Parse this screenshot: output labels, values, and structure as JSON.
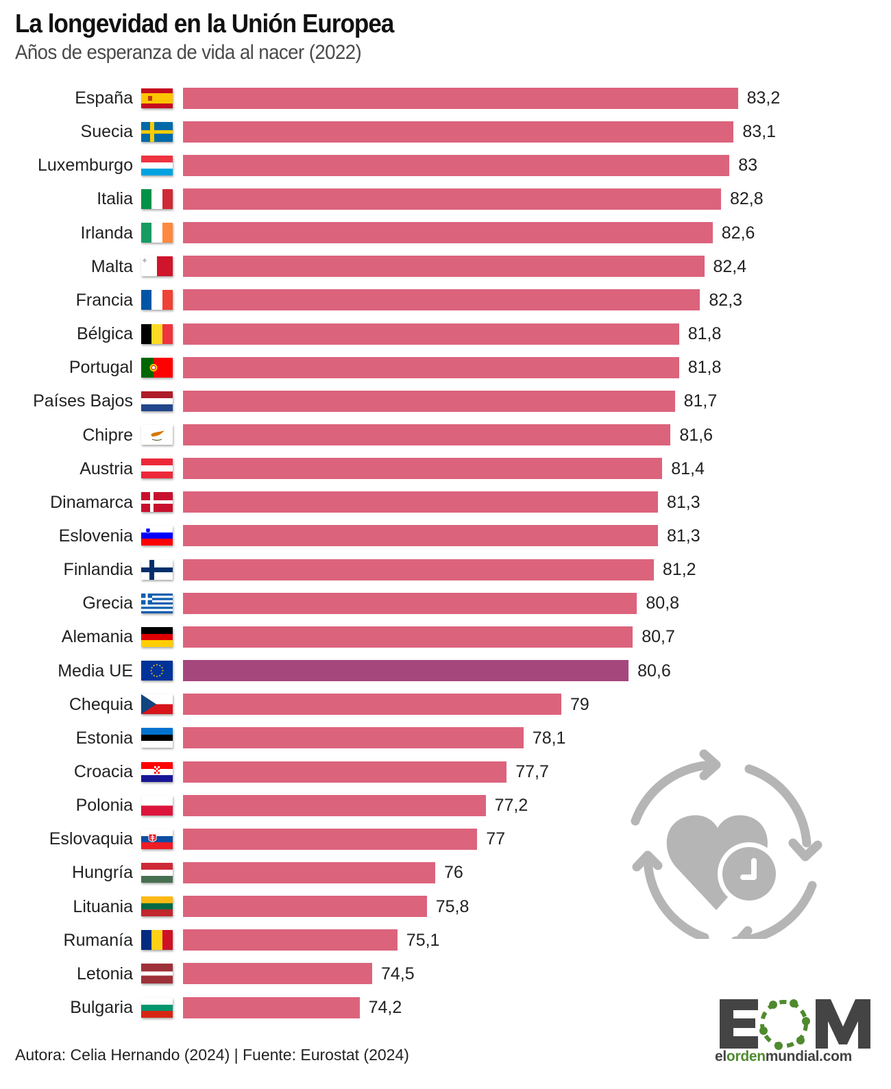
{
  "header": {
    "title": "La longevidad en la Unión Europea",
    "subtitle": "Años de esperanza de vida al nacer (2022)"
  },
  "footer": {
    "credit": "Autora: Celia Hernando (2024) | Fuente: Eurostat (2024)"
  },
  "branding": {
    "logo_letters": "EOM",
    "site_prefix": "el",
    "site_highlight": "orden",
    "site_suffix": "mundial.com"
  },
  "colors": {
    "bar": "#dc637c",
    "bar_highlight": "#a5477d",
    "illustration": "#b5b5b5",
    "logo_dark": "#444444",
    "logo_green": "#4f8a2e"
  },
  "illustration": {
    "icon": "heart-clock-cycle-icon"
  },
  "chart_data": {
    "type": "bar",
    "orientation": "horizontal",
    "title": "La longevidad en la Unión Europea",
    "subtitle": "Años de esperanza de vida al nacer (2022)",
    "xlabel": "",
    "ylabel": "",
    "xlim": [
      70,
      84
    ],
    "grid": false,
    "legend": "none",
    "highlight": "Media UE",
    "categories": [
      "España",
      "Suecia",
      "Luxemburgo",
      "Italia",
      "Irlanda",
      "Malta",
      "Francia",
      "Bélgica",
      "Portugal",
      "Países Bajos",
      "Chipre",
      "Austria",
      "Dinamarca",
      "Eslovenia",
      "Finlandia",
      "Grecia",
      "Alemania",
      "Media UE",
      "Chequia",
      "Estonia",
      "Croacia",
      "Polonia",
      "Eslovaquia",
      "Hungría",
      "Lituania",
      "Rumanía",
      "Letonia",
      "Bulgaria"
    ],
    "flags": [
      "es",
      "se",
      "lu",
      "it",
      "ie",
      "mt",
      "fr",
      "be",
      "pt",
      "nl",
      "cy",
      "at",
      "dk",
      "si",
      "fi",
      "gr",
      "de",
      "eu",
      "cz",
      "ee",
      "hr",
      "pl",
      "sk",
      "hu",
      "lt",
      "ro",
      "lv",
      "bg"
    ],
    "values": [
      83.2,
      83.1,
      83.0,
      82.8,
      82.6,
      82.4,
      82.3,
      81.8,
      81.8,
      81.7,
      81.6,
      81.4,
      81.3,
      81.3,
      81.2,
      80.8,
      80.7,
      80.6,
      79.0,
      78.1,
      77.7,
      77.2,
      77.0,
      76.0,
      75.8,
      75.1,
      74.5,
      74.2
    ],
    "value_labels": [
      "83,2",
      "83,1",
      "83",
      "82,8",
      "82,6",
      "82,4",
      "82,3",
      "81,8",
      "81,8",
      "81,7",
      "81,6",
      "81,4",
      "81,3",
      "81,3",
      "81,2",
      "80,8",
      "80,7",
      "80,6",
      "79",
      "78,1",
      "77,7",
      "77,2",
      "77",
      "76",
      "75,8",
      "75,1",
      "74,5",
      "74,2"
    ]
  }
}
